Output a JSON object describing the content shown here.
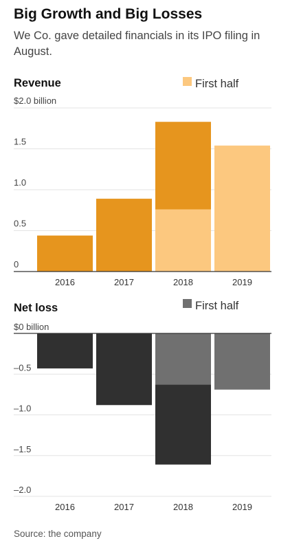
{
  "header": {
    "title": "Big Growth and Big Losses",
    "subtitle": "We Co. gave detailed financials in its IPO filing in August."
  },
  "colors": {
    "revenue_full_year": "#e6951e",
    "revenue_first_half": "#fcc87f",
    "loss_full_year": "#303030",
    "loss_first_half": "#707070",
    "gridline": "#e3e3e3"
  },
  "chart_data": [
    {
      "type": "bar",
      "title": "Revenue",
      "categories": [
        "2016",
        "2017",
        "2018",
        "2019"
      ],
      "ytick_labels": [
        "$2.0 billion",
        "1.5",
        "1.0",
        "0.5",
        "0"
      ],
      "yticks": [
        2.0,
        1.5,
        1.0,
        0.5,
        0
      ],
      "ylim": [
        0,
        2.0
      ],
      "series": [
        {
          "values": [
            0.44,
            0.89,
            1.83,
            null
          ]
        },
        {
          "name": "First half",
          "values": [
            null,
            null,
            0.76,
            1.54
          ]
        }
      ],
      "legend": {
        "label": "First half",
        "placement": "top-right"
      },
      "grid": true
    },
    {
      "type": "bar",
      "title": "Net loss",
      "categories": [
        "2016",
        "2017",
        "2018",
        "2019"
      ],
      "ytick_labels": [
        "$0 billion",
        "–0.5",
        "–1.0",
        "–1.5",
        "–2.0"
      ],
      "yticks": [
        0,
        -0.5,
        -1.0,
        -1.5,
        -2.0
      ],
      "ylim": [
        -2.0,
        0
      ],
      "series": [
        {
          "values": [
            -0.43,
            -0.88,
            -1.61,
            null
          ]
        },
        {
          "name": "First half",
          "values": [
            null,
            null,
            -0.63,
            -0.69
          ]
        }
      ],
      "legend": {
        "label": "First half",
        "placement": "top-right"
      },
      "grid": true
    }
  ],
  "footer": {
    "source": "Source:  the company"
  }
}
